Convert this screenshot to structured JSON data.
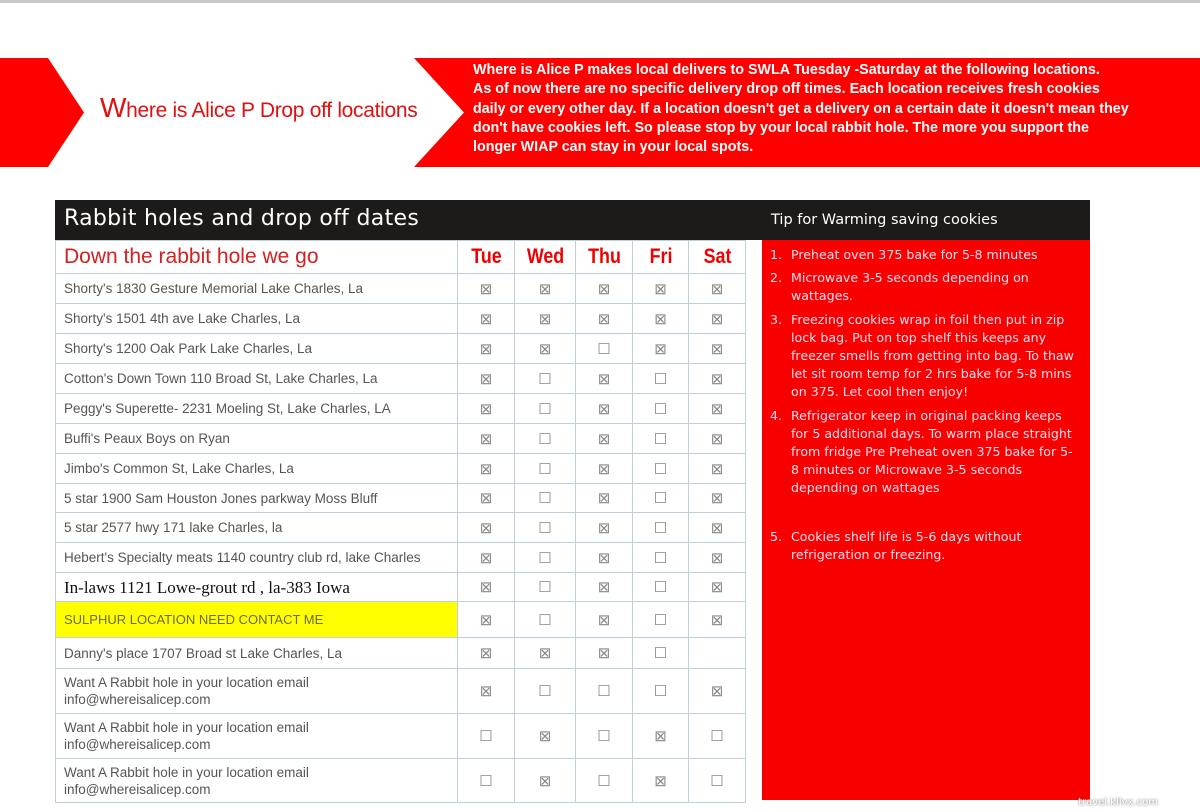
{
  "banner": {
    "title_first_letter": "W",
    "title_rest": "here is Alice P Drop off locations",
    "text": "Where is Alice P makes local delivers to SWLA Tuesday -Saturday at the following locations.\nAs of now there are no specific delivery drop off times. Each location receives fresh cookies daily or every other day. If a location doesn't get a delivery on a certain date it doesn't mean they don't have cookies left. So please stop by your local rabbit hole. The more you support the longer WIAP can stay in your local spots."
  },
  "table": {
    "title": "Rabbit holes and drop off dates",
    "subtitle": "Down the rabbit hole we go",
    "days": [
      "Tue",
      "Wed",
      "Thu",
      "Fri",
      "Sat"
    ],
    "rows": [
      {
        "name": "Shorty's 1830 Gesture Memorial Lake Charles, La",
        "marks": [
          1,
          1,
          1,
          1,
          1
        ]
      },
      {
        "name": "Shorty's 1501 4th ave Lake Charles, La",
        "marks": [
          1,
          1,
          1,
          1,
          1
        ]
      },
      {
        "name": "Shorty's 1200 Oak Park  Lake Charles, La",
        "marks": [
          1,
          1,
          0,
          1,
          1
        ]
      },
      {
        "name": "Cotton's Down Town 110 Broad St, Lake Charles, La",
        "marks": [
          1,
          0,
          1,
          0,
          1
        ]
      },
      {
        "name": "Peggy's Superette- 2231 Moeling St, Lake Charles, LA",
        "marks": [
          1,
          0,
          1,
          0,
          1
        ]
      },
      {
        "name": "Buffi's Peaux Boys on Ryan",
        "marks": [
          1,
          0,
          1,
          0,
          1
        ]
      },
      {
        "name": "Jimbo's Common St, Lake Charles, La",
        "marks": [
          1,
          0,
          1,
          0,
          1
        ]
      },
      {
        "name": "5 star 1900 Sam Houston Jones parkway Moss Bluff",
        "marks": [
          1,
          0,
          1,
          0,
          1
        ]
      },
      {
        "name": "5 star 2577 hwy 171 lake Charles, la",
        "marks": [
          1,
          0,
          1,
          0,
          1
        ]
      },
      {
        "name": "Hebert's Specialty meats 1140 country club rd, lake Charles",
        "marks": [
          1,
          0,
          1,
          0,
          1
        ]
      },
      {
        "name": "In-laws 1121 Lowe-grout rd , la-383 Iowa",
        "marks": [
          1,
          0,
          1,
          0,
          1
        ],
        "style": "serif"
      },
      {
        "name": "SULPHUR LOCATION NEED CONTACT ME",
        "marks": [
          1,
          0,
          1,
          0,
          1
        ],
        "style": "highlight"
      },
      {
        "name": "Danny's place 1707 Broad st Lake Charles, La",
        "marks": [
          1,
          1,
          1,
          0,
          null
        ]
      },
      {
        "name": "Want A Rabbit hole in your location email\ninfo@whereisalicep.com",
        "marks": [
          1,
          0,
          0,
          0,
          1
        ]
      },
      {
        "name": "Want A Rabbit hole in your location email\ninfo@whereisalicep.com",
        "marks": [
          0,
          1,
          0,
          1,
          0
        ]
      },
      {
        "name": "Want A Rabbit hole in your location email\ninfo@whereisalicep.com",
        "marks": [
          0,
          1,
          0,
          1,
          0
        ]
      }
    ]
  },
  "tips": {
    "title": "Tip for Warming saving cookies",
    "items": [
      {
        "n": "1.",
        "text": "Preheat oven 375 bake for 5-8 minutes"
      },
      {
        "n": "2.",
        "text": "Microwave 3-5 seconds depending on wattages."
      },
      {
        "n": "3.",
        "text": "Freezing cookies wrap in foil then put in zip lock bag. Put on top shelf this keeps any freezer smells from getting into bag. To thaw let sit room temp for 2 hrs bake for 5-8 mins on 375. Let cool then enjoy!"
      },
      {
        "n": "4.",
        "text": "Refrigerator keep in original packing keeps for 5 additional days. To warm place straight from fridge Pre Preheat oven 375 bake for 5-8 minutes or Microwave 3-5 seconds depending on wattages"
      },
      {
        "n": "5.",
        "text": "Cookies shelf life is 5-6 days without refrigeration or freezing."
      }
    ]
  },
  "watermark": "travel.kllvx.com",
  "colors": {
    "accent": "#ff0000",
    "header": "#1c1b19",
    "highlight": "#ffff00"
  }
}
